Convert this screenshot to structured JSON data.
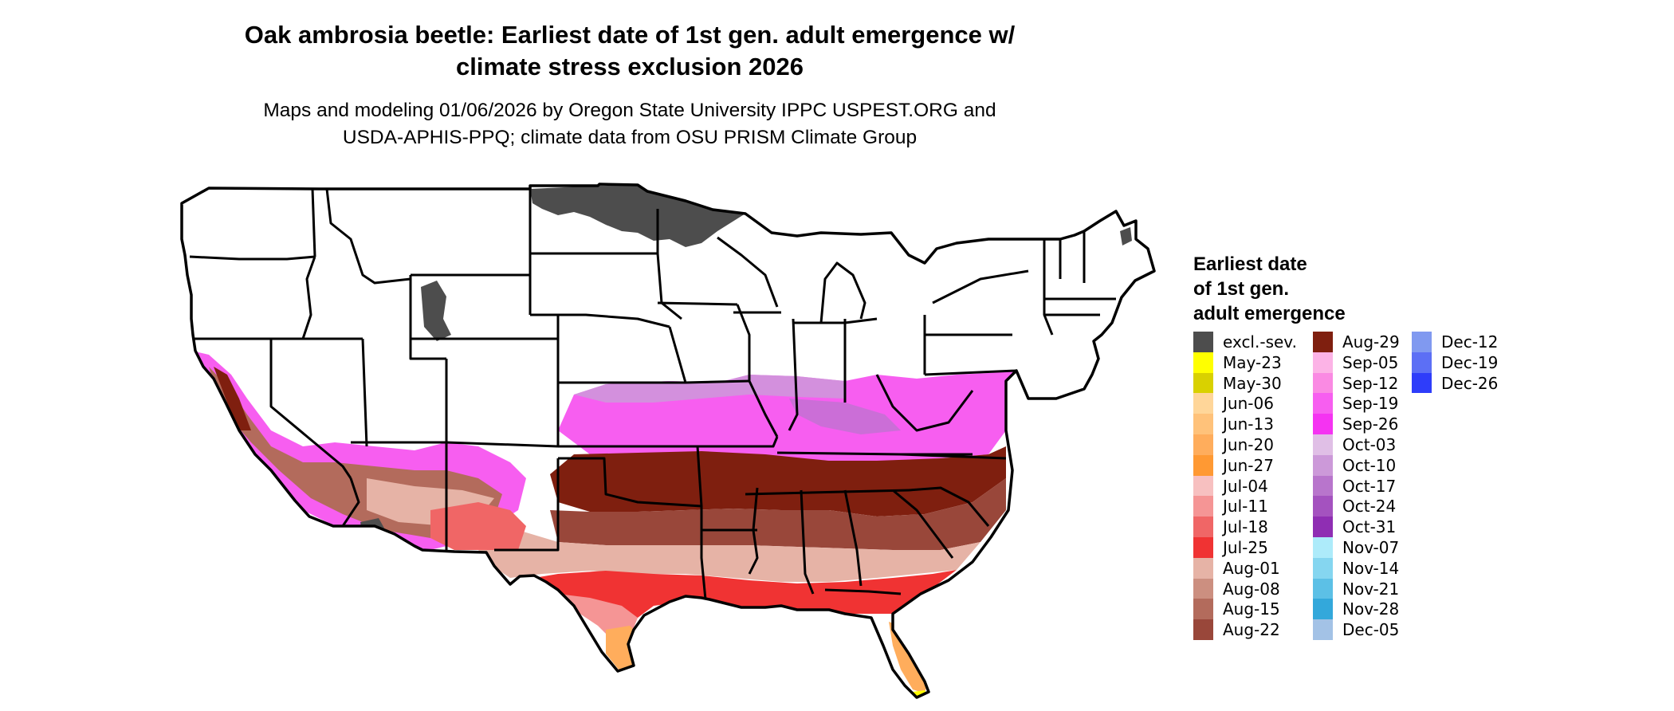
{
  "map": {
    "title_line1": "Oak ambrosia beetle: Earliest date of 1st gen. adult emergence w/",
    "title_line2": "climate stress exclusion 2026",
    "subtitle_line1": "Maps and modeling 01/06/2026 by Oregon State University IPPC USPEST.ORG and",
    "subtitle_line2": "USDA-APHIS-PPQ; climate data from OSU PRISM Climate Group",
    "region": "Contiguous United States with state boundaries"
  },
  "legend": {
    "title_line1": "Earliest date",
    "title_line2": "of 1st gen.",
    "title_line3": "adult emergence",
    "columns": [
      [
        {
          "label": "excl.-sev.",
          "color": "#4d4d4d"
        },
        {
          "label": "May-23",
          "color": "#ffff00"
        },
        {
          "label": "May-30",
          "color": "#d9d100"
        },
        {
          "label": "Jun-06",
          "color": "#ffd699"
        },
        {
          "label": "Jun-13",
          "color": "#ffc27a"
        },
        {
          "label": "Jun-20",
          "color": "#ffad5c"
        },
        {
          "label": "Jun-27",
          "color": "#ff9933"
        },
        {
          "label": "Jul-04",
          "color": "#f7c0c0"
        },
        {
          "label": "Jul-11",
          "color": "#f59595"
        },
        {
          "label": "Jul-18",
          "color": "#f06666"
        },
        {
          "label": "Jul-25",
          "color": "#f03333"
        },
        {
          "label": "Aug-01",
          "color": "#e6b3a6"
        },
        {
          "label": "Aug-08",
          "color": "#cc8f80"
        },
        {
          "label": "Aug-15",
          "color": "#b36b5c"
        },
        {
          "label": "Aug-22",
          "color": "#99473a"
        }
      ],
      [
        {
          "label": "Aug-29",
          "color": "#7f1f0f"
        },
        {
          "label": "Sep-05",
          "color": "#fcb3e6"
        },
        {
          "label": "Sep-12",
          "color": "#fa8ae3"
        },
        {
          "label": "Sep-19",
          "color": "#f75ef0"
        },
        {
          "label": "Sep-26",
          "color": "#f533f2"
        },
        {
          "label": "Oct-03",
          "color": "#e0bfe6"
        },
        {
          "label": "Oct-10",
          "color": "#cc99d9"
        },
        {
          "label": "Oct-17",
          "color": "#b875cc"
        },
        {
          "label": "Oct-24",
          "color": "#a452bf"
        },
        {
          "label": "Oct-31",
          "color": "#8f2eb3"
        },
        {
          "label": "Nov-07",
          "color": "#adebfa"
        },
        {
          "label": "Nov-14",
          "color": "#85d6f0"
        },
        {
          "label": "Nov-21",
          "color": "#5cc0e6"
        },
        {
          "label": "Nov-28",
          "color": "#33a8db"
        },
        {
          "label": "Dec-05",
          "color": "#a3c2e6"
        }
      ],
      [
        {
          "label": "Dec-12",
          "color": "#8099f0"
        },
        {
          "label": "Dec-19",
          "color": "#5c6ff5"
        },
        {
          "label": "Dec-26",
          "color": "#2e3dfa"
        }
      ]
    ]
  }
}
